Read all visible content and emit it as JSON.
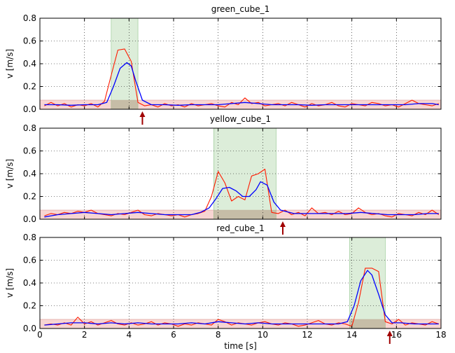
{
  "chart_data": [
    {
      "type": "line",
      "title": "green_cube_1",
      "ylabel": "v [m/s]",
      "xlabel": "",
      "xlim": [
        0,
        18
      ],
      "ylim": [
        0,
        0.8
      ],
      "xticks": [
        "0",
        "2",
        "4",
        "6",
        "8",
        "10",
        "12",
        "14",
        "16",
        "18"
      ],
      "show_xtick_labels": false,
      "yticks": [
        "0.0",
        "0.2",
        "0.4",
        "0.6",
        "0.8"
      ],
      "grid": true,
      "threshold_band": {
        "y": [
          0,
          0.08
        ],
        "color": "#f4c7c3"
      },
      "highlight": {
        "x": [
          3.2,
          4.4
        ],
        "color": "#b9dcb4"
      },
      "arrow_x": 4.6,
      "arrow_color": "#a00000",
      "series": [
        {
          "color": "#ff1a00",
          "style": "raw",
          "x": [
            0.2,
            0.5,
            0.8,
            1.1,
            1.4,
            1.7,
            2.0,
            2.3,
            2.6,
            2.9,
            3.2,
            3.5,
            3.8,
            4.1,
            4.4,
            4.7,
            5.0,
            5.3,
            5.6,
            5.9,
            6.2,
            6.5,
            6.8,
            7.1,
            7.4,
            7.7,
            8.0,
            8.3,
            8.6,
            8.9,
            9.2,
            9.5,
            9.8,
            10.1,
            10.4,
            10.7,
            11.0,
            11.3,
            11.6,
            11.9,
            12.2,
            12.5,
            12.8,
            13.1,
            13.4,
            13.7,
            14.0,
            14.3,
            14.6,
            14.9,
            15.2,
            15.5,
            15.8,
            16.1,
            16.4,
            16.7,
            17.0,
            17.3,
            17.6,
            17.9
          ],
          "y": [
            0.03,
            0.06,
            0.03,
            0.05,
            0.02,
            0.04,
            0.03,
            0.05,
            0.02,
            0.07,
            0.3,
            0.52,
            0.53,
            0.42,
            0.06,
            0.03,
            0.04,
            0.02,
            0.05,
            0.03,
            0.04,
            0.02,
            0.05,
            0.03,
            0.04,
            0.05,
            0.03,
            0.02,
            0.06,
            0.04,
            0.1,
            0.05,
            0.06,
            0.03,
            0.04,
            0.05,
            0.03,
            0.06,
            0.04,
            0.02,
            0.05,
            0.03,
            0.04,
            0.06,
            0.03,
            0.02,
            0.05,
            0.04,
            0.03,
            0.06,
            0.05,
            0.03,
            0.04,
            0.02,
            0.05,
            0.08,
            0.05,
            0.04,
            0.03,
            0.05
          ]
        },
        {
          "color": "#0000ff",
          "style": "smooth",
          "x": [
            0.2,
            0.8,
            1.4,
            2.0,
            2.6,
            3.0,
            3.3,
            3.6,
            3.9,
            4.1,
            4.3,
            4.6,
            5.0,
            5.6,
            6.2,
            6.8,
            7.4,
            8.0,
            8.6,
            9.2,
            9.8,
            10.4,
            11.0,
            11.6,
            12.2,
            12.8,
            13.4,
            14.0,
            14.6,
            15.2,
            15.8,
            16.4,
            17.0,
            17.6,
            17.9
          ],
          "y": [
            0.04,
            0.04,
            0.035,
            0.04,
            0.04,
            0.06,
            0.2,
            0.36,
            0.41,
            0.38,
            0.25,
            0.08,
            0.04,
            0.04,
            0.035,
            0.04,
            0.04,
            0.04,
            0.05,
            0.06,
            0.05,
            0.04,
            0.04,
            0.04,
            0.035,
            0.04,
            0.04,
            0.04,
            0.04,
            0.04,
            0.04,
            0.04,
            0.05,
            0.05,
            0.04
          ]
        }
      ]
    },
    {
      "type": "line",
      "title": "yellow_cube_1",
      "ylabel": "v [m/s]",
      "xlabel": "",
      "xlim": [
        0,
        18
      ],
      "ylim": [
        0,
        0.8
      ],
      "xticks": [
        "0",
        "2",
        "4",
        "6",
        "8",
        "10",
        "12",
        "14",
        "16",
        "18"
      ],
      "show_xtick_labels": false,
      "yticks": [
        "0.0",
        "0.2",
        "0.4",
        "0.6",
        "0.8"
      ],
      "grid": true,
      "threshold_band": {
        "y": [
          0,
          0.08
        ],
        "color": "#f4c7c3"
      },
      "highlight": {
        "x": [
          7.8,
          10.6
        ],
        "color": "#b9dcb4"
      },
      "arrow_x": 10.9,
      "arrow_color": "#a00000",
      "series": [
        {
          "color": "#ff1a00",
          "style": "raw",
          "x": [
            0.2,
            0.5,
            0.8,
            1.1,
            1.4,
            1.7,
            2.0,
            2.3,
            2.6,
            2.9,
            3.2,
            3.5,
            3.8,
            4.1,
            4.4,
            4.7,
            5.0,
            5.3,
            5.6,
            5.9,
            6.2,
            6.5,
            6.8,
            7.1,
            7.4,
            7.7,
            8.0,
            8.3,
            8.6,
            8.9,
            9.2,
            9.5,
            9.8,
            10.1,
            10.4,
            10.7,
            11.0,
            11.3,
            11.6,
            11.9,
            12.2,
            12.5,
            12.8,
            13.1,
            13.4,
            13.7,
            14.0,
            14.3,
            14.6,
            14.9,
            15.2,
            15.5,
            15.8,
            16.1,
            16.4,
            16.7,
            17.0,
            17.3,
            17.6,
            17.9
          ],
          "y": [
            0.03,
            0.05,
            0.04,
            0.06,
            0.05,
            0.07,
            0.06,
            0.08,
            0.05,
            0.04,
            0.03,
            0.05,
            0.04,
            0.06,
            0.08,
            0.04,
            0.03,
            0.05,
            0.04,
            0.03,
            0.04,
            0.02,
            0.04,
            0.05,
            0.07,
            0.2,
            0.42,
            0.32,
            0.16,
            0.2,
            0.17,
            0.38,
            0.4,
            0.44,
            0.06,
            0.05,
            0.08,
            0.04,
            0.06,
            0.03,
            0.1,
            0.05,
            0.06,
            0.04,
            0.07,
            0.04,
            0.05,
            0.1,
            0.06,
            0.04,
            0.05,
            0.03,
            0.02,
            0.05,
            0.04,
            0.03,
            0.06,
            0.04,
            0.08,
            0.04
          ]
        },
        {
          "color": "#0000ff",
          "style": "smooth",
          "x": [
            0.2,
            0.8,
            1.4,
            2.0,
            2.6,
            3.2,
            3.8,
            4.4,
            5.0,
            5.6,
            6.2,
            6.8,
            7.2,
            7.6,
            7.9,
            8.2,
            8.5,
            8.8,
            9.1,
            9.4,
            9.7,
            9.9,
            10.2,
            10.5,
            10.8,
            11.4,
            12.0,
            12.6,
            13.2,
            13.8,
            14.4,
            15.0,
            15.6,
            16.2,
            16.8,
            17.4,
            17.9
          ],
          "y": [
            0.02,
            0.04,
            0.05,
            0.06,
            0.05,
            0.04,
            0.05,
            0.06,
            0.05,
            0.04,
            0.04,
            0.04,
            0.06,
            0.1,
            0.18,
            0.27,
            0.28,
            0.25,
            0.2,
            0.2,
            0.26,
            0.33,
            0.3,
            0.15,
            0.08,
            0.05,
            0.05,
            0.05,
            0.05,
            0.05,
            0.06,
            0.05,
            0.04,
            0.04,
            0.04,
            0.05,
            0.05
          ]
        }
      ]
    },
    {
      "type": "line",
      "title": "red_cube_1",
      "ylabel": "v [m/s]",
      "xlabel": "time [s]",
      "xlim": [
        0,
        18
      ],
      "ylim": [
        0,
        0.8
      ],
      "xticks": [
        "0",
        "2",
        "4",
        "6",
        "8",
        "10",
        "12",
        "14",
        "16",
        "18"
      ],
      "show_xtick_labels": true,
      "yticks": [
        "0.0",
        "0.2",
        "0.4",
        "0.6",
        "0.8"
      ],
      "grid": true,
      "threshold_band": {
        "y": [
          0,
          0.08
        ],
        "color": "#f4c7c3"
      },
      "highlight": {
        "x": [
          13.9,
          15.5
        ],
        "color": "#b9dcb4"
      },
      "arrow_x": 15.7,
      "arrow_color": "#a00000",
      "series": [
        {
          "color": "#ff1a00",
          "style": "raw",
          "x": [
            0.2,
            0.5,
            0.8,
            1.1,
            1.4,
            1.7,
            2.0,
            2.3,
            2.6,
            2.9,
            3.2,
            3.5,
            3.8,
            4.1,
            4.4,
            4.7,
            5.0,
            5.3,
            5.6,
            5.9,
            6.2,
            6.5,
            6.8,
            7.1,
            7.4,
            7.7,
            8.0,
            8.3,
            8.6,
            8.9,
            9.2,
            9.5,
            9.8,
            10.1,
            10.4,
            10.7,
            11.0,
            11.3,
            11.6,
            11.9,
            12.2,
            12.5,
            12.8,
            13.1,
            13.4,
            13.7,
            14.0,
            14.3,
            14.6,
            14.9,
            15.2,
            15.5,
            15.8,
            16.1,
            16.4,
            16.7,
            17.0,
            17.3,
            17.6,
            17.9
          ],
          "y": [
            0.03,
            0.04,
            0.03,
            0.05,
            0.03,
            0.1,
            0.04,
            0.06,
            0.03,
            0.05,
            0.07,
            0.04,
            0.03,
            0.05,
            0.03,
            0.04,
            0.06,
            0.03,
            0.05,
            0.04,
            0.02,
            0.04,
            0.03,
            0.05,
            0.04,
            0.03,
            0.08,
            0.06,
            0.03,
            0.05,
            0.04,
            0.03,
            0.05,
            0.06,
            0.04,
            0.03,
            0.05,
            0.04,
            0.02,
            0.03,
            0.05,
            0.07,
            0.04,
            0.03,
            0.05,
            0.04,
            0.02,
            0.23,
            0.53,
            0.53,
            0.5,
            0.06,
            0.04,
            0.08,
            0.03,
            0.05,
            0.04,
            0.03,
            0.06,
            0.04
          ]
        },
        {
          "color": "#0000ff",
          "style": "smooth",
          "x": [
            0.2,
            0.8,
            1.4,
            2.0,
            2.6,
            3.2,
            3.8,
            4.4,
            5.0,
            5.6,
            6.2,
            6.8,
            7.4,
            8.0,
            8.6,
            9.2,
            9.8,
            10.4,
            11.0,
            11.6,
            12.2,
            12.8,
            13.4,
            13.8,
            14.1,
            14.4,
            14.7,
            14.9,
            15.2,
            15.5,
            15.8,
            16.2,
            16.8,
            17.4,
            17.9
          ],
          "y": [
            0.03,
            0.04,
            0.05,
            0.05,
            0.04,
            0.05,
            0.04,
            0.05,
            0.04,
            0.04,
            0.04,
            0.05,
            0.04,
            0.06,
            0.05,
            0.04,
            0.05,
            0.04,
            0.04,
            0.04,
            0.04,
            0.04,
            0.04,
            0.06,
            0.2,
            0.42,
            0.51,
            0.47,
            0.3,
            0.12,
            0.05,
            0.05,
            0.04,
            0.04,
            0.04
          ]
        }
      ]
    }
  ]
}
